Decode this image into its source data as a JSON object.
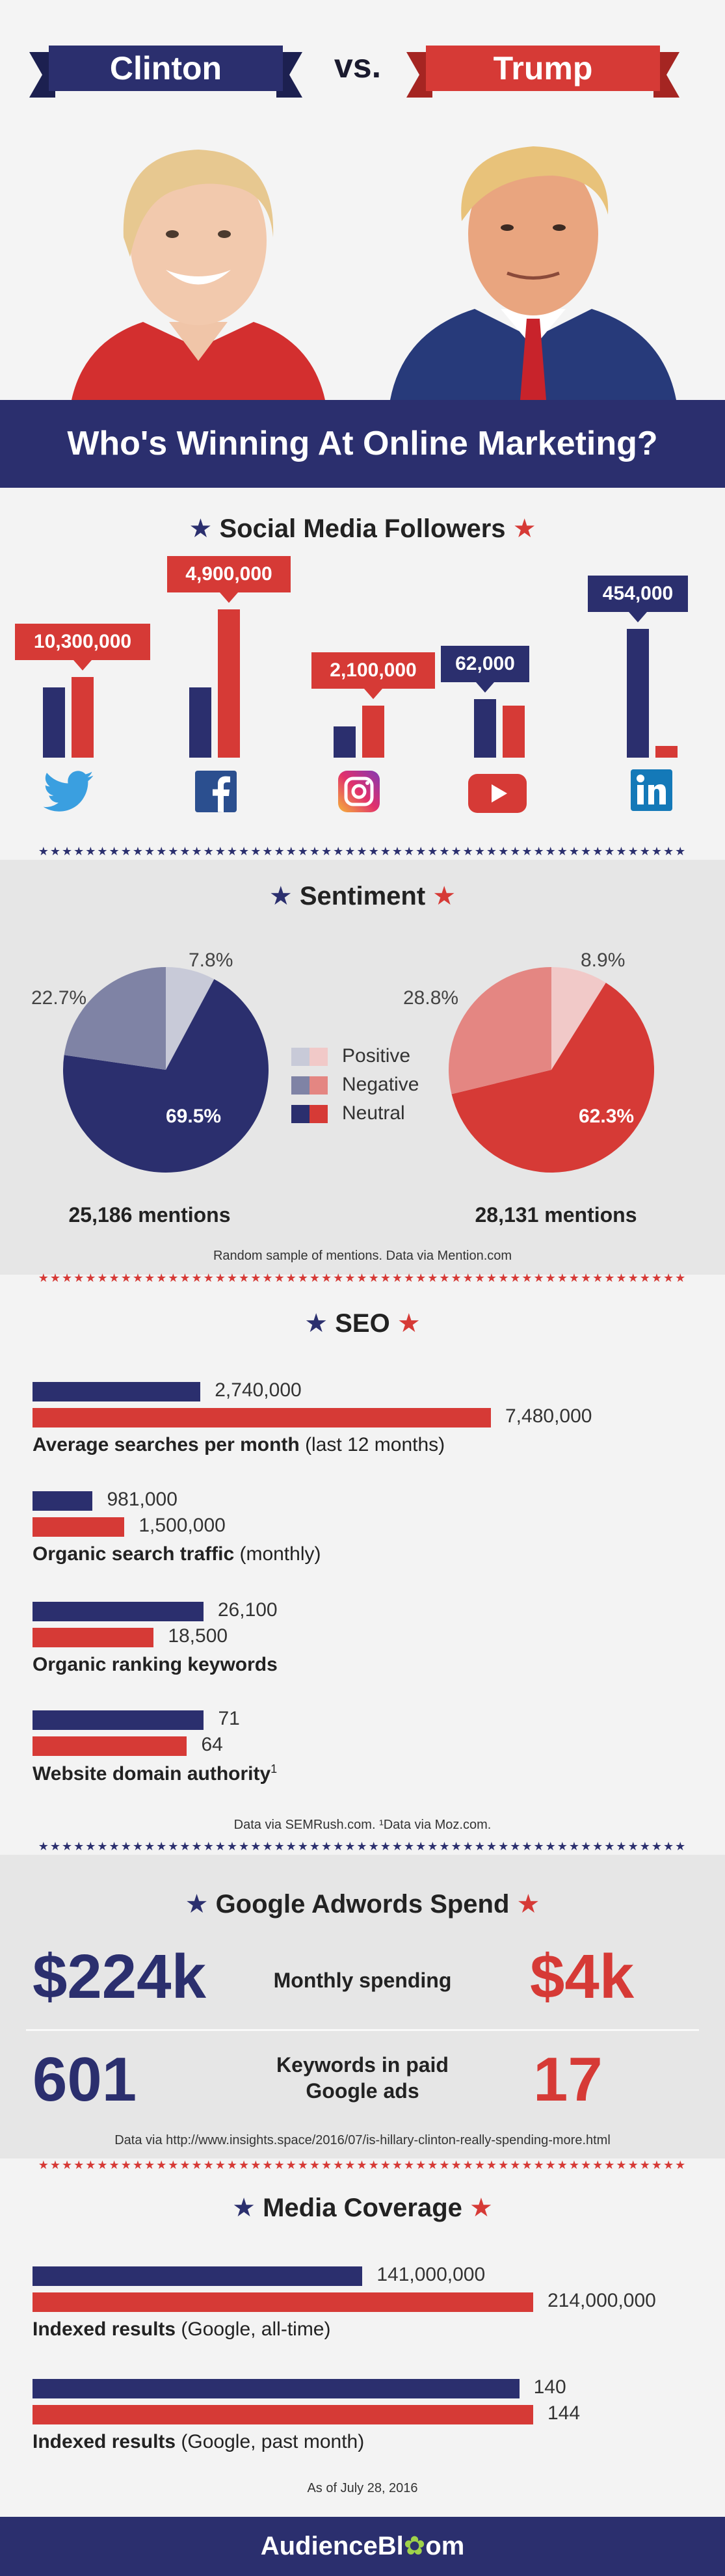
{
  "header": {
    "left_name": "Clinton",
    "vs": "vs.",
    "right_name": "Trump",
    "banner": "Who's Winning At Online Marketing?"
  },
  "colors": {
    "navy": "#2b2f6e",
    "red": "#d63a36"
  },
  "social": {
    "title": "Social Media Followers",
    "platforms": [
      {
        "icon": "twitter-icon",
        "clinton": 9,
        "trump": 10.3,
        "label": "10,300,000",
        "label_side": "trump"
      },
      {
        "icon": "facebook-icon",
        "clinton": 9,
        "trump": 19,
        "label": "4,900,000",
        "label_side": "trump"
      },
      {
        "icon": "instagram-icon",
        "clinton": 4,
        "trump": 6.7,
        "label": "2,100,000",
        "label_side": "trump"
      },
      {
        "icon": "youtube-icon",
        "clinton": 7.5,
        "trump": 6.7,
        "label": "62,000",
        "label_side": "clinton"
      },
      {
        "icon": "linkedin-icon",
        "clinton": 16.5,
        "trump": 1.5,
        "label": "454,000",
        "label_side": "clinton"
      }
    ]
  },
  "sentiment": {
    "title": "Sentiment",
    "legend": [
      "Positive",
      "Negative",
      "Neutral"
    ],
    "clinton": {
      "positive": 7.8,
      "negative": 22.7,
      "neutral": 69.5,
      "pos_label": "7.8%",
      "neg_label": "22.7%",
      "neu_label": "69.5%",
      "mentions": "25,186 mentions"
    },
    "trump": {
      "positive": 8.9,
      "negative": 28.8,
      "neutral": 62.3,
      "pos_label": "8.9%",
      "neg_label": "28.8%",
      "neu_label": "62.3%",
      "mentions": "28,131 mentions"
    },
    "note": "Random sample of mentions. Data via Mention.com"
  },
  "seo": {
    "title": "SEO",
    "groups": [
      {
        "clinton": 2740000,
        "trump": 7480000,
        "c_label": "2,740,000",
        "t_label": "7,480,000",
        "bold": "Average searches per month",
        "light": " (last 12 months)",
        "max": 7480000
      },
      {
        "clinton": 981000,
        "trump": 1500000,
        "c_label": "981,000",
        "t_label": "1,500,000",
        "bold": "Organic search traffic",
        "light": " (monthly)",
        "max": 7480000
      },
      {
        "clinton": 26100,
        "trump": 18500,
        "c_label": "26,100",
        "t_label": "18,500",
        "bold": "Organic ranking keywords",
        "light": "",
        "max": 70000
      },
      {
        "clinton": 71,
        "trump": 64,
        "c_label": "71",
        "t_label": "64",
        "bold": "Website domain authority",
        "light": "",
        "sup": "1",
        "max": 190
      }
    ],
    "note": "Data via SEMRush.com. ¹Data via Moz.com."
  },
  "adwords": {
    "title": "Google Adwords Spend",
    "rows": [
      {
        "clinton": "$224k",
        "label": "Monthly spending",
        "trump": "$4k"
      },
      {
        "clinton": "601",
        "label": "Keywords in paid Google ads",
        "trump": "17"
      }
    ],
    "note": "Data via http://www.insights.space/2016/07/is-hillary-clinton-really-spending-more.html"
  },
  "media": {
    "title": "Media Coverage",
    "groups": [
      {
        "clinton": 141000000,
        "trump": 214000000,
        "c_label": "141,000,000",
        "t_label": "214,000,000",
        "bold": "Indexed results",
        "light": " (Google, all-time)",
        "max": 214000000
      },
      {
        "clinton": 140,
        "trump": 144,
        "c_label": "140",
        "t_label": "144",
        "bold": "Indexed results",
        "light": " (Google, past month)",
        "max": 144
      }
    ],
    "note": "As of July 28, 2016"
  },
  "footer": {
    "brand_a": "AudienceBl",
    "brand_b": "om"
  },
  "chart_data": [
    {
      "type": "bar",
      "title": "Social Media Followers",
      "categories": [
        "Twitter",
        "Facebook",
        "Instagram",
        "YouTube",
        "LinkedIn"
      ],
      "annotations": [
        "10,300,000",
        "4,900,000",
        "2,100,000",
        "62,000",
        "454,000"
      ]
    },
    {
      "type": "pie",
      "categories": [
        "Positive",
        "Negative",
        "Neutral"
      ],
      "series": [
        {
          "values": [
            7.8,
            22.7,
            69.5
          ]
        },
        {
          "values": [
            8.9,
            28.8,
            62.3
          ]
        }
      ]
    },
    {
      "type": "bar",
      "title": "SEO",
      "categories": [
        "Average searches per month (last 12 months)",
        "Organic search traffic (monthly)",
        "Organic ranking keywords",
        "Website domain authority"
      ],
      "series": [
        {
          "values": [
            2740000,
            981000,
            26100,
            71
          ]
        },
        {
          "values": [
            7480000,
            1500000,
            18500,
            64
          ]
        }
      ]
    },
    {
      "type": "bar",
      "title": "Media Coverage",
      "categories": [
        "Indexed results (Google, all-time)",
        "Indexed results (Google, past month)"
      ],
      "series": [
        {
          "values": [
            141000000,
            140
          ]
        },
        {
          "values": [
            214000000,
            144
          ]
        }
      ]
    }
  ]
}
